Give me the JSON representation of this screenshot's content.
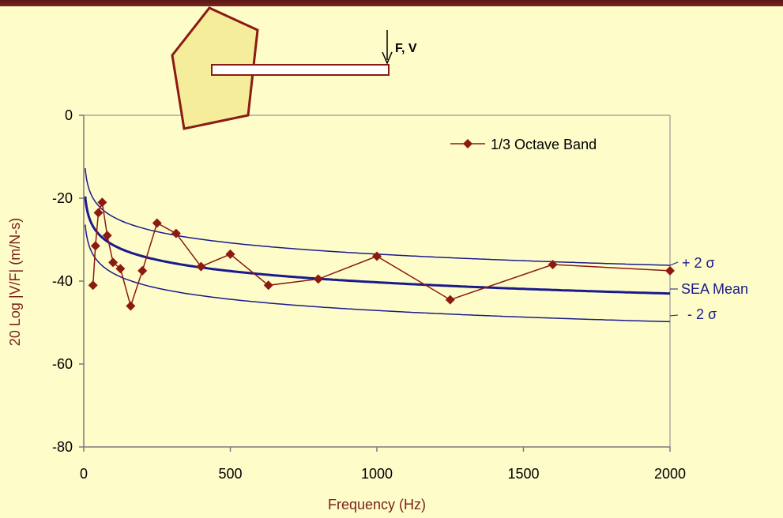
{
  "colors": {
    "background": "#fefcc9",
    "top_bar": "#6b1d1d",
    "measured": "#8b1a10",
    "sea_mean": "#1a1a8c",
    "bounds": "#1a1a8c",
    "axis_title": "#7b1f1a",
    "plate_fill": "#f5ed9c",
    "plate_stroke": "#8b1a10"
  },
  "diagram": {
    "force_label": "F, V"
  },
  "chart_data": {
    "type": "line",
    "xlabel": "Frequency  (Hz)",
    "ylabel": "20 Log |V/F|  (m/N-s)",
    "xlim": [
      0,
      2000
    ],
    "ylim": [
      -80,
      0
    ],
    "x_ticks": [
      "0",
      "500",
      "1000",
      "1500",
      "2000"
    ],
    "y_ticks": [
      "0",
      "-20",
      "-40",
      "-60",
      "-80"
    ],
    "grid": false,
    "legend": {
      "position": "top-right",
      "label": "1/3 Octave Band"
    },
    "series": [
      {
        "name": "1/3 Octave Band",
        "marker": "diamond",
        "x": [
          31.5,
          40,
          50,
          63,
          80,
          100,
          125,
          160,
          200,
          250,
          315,
          400,
          500,
          630,
          800,
          1000,
          1250,
          1600,
          2000
        ],
        "y": [
          -41,
          -31.5,
          -23.5,
          -21,
          -29,
          -35.5,
          -37,
          -46,
          -37.5,
          -26,
          -28.5,
          -36.5,
          -33.5,
          -41,
          -39.5,
          -34,
          -44.5,
          -36,
          -37.5
        ]
      }
    ],
    "reference_curves": {
      "mean_label": "SEA Mean",
      "upper_label": "+ 2 σ",
      "lower_label": "- 2 σ",
      "mean_at_2000": -43,
      "upper_offset": 6.8,
      "lower_offset": -6.8,
      "x_start": 5
    }
  }
}
